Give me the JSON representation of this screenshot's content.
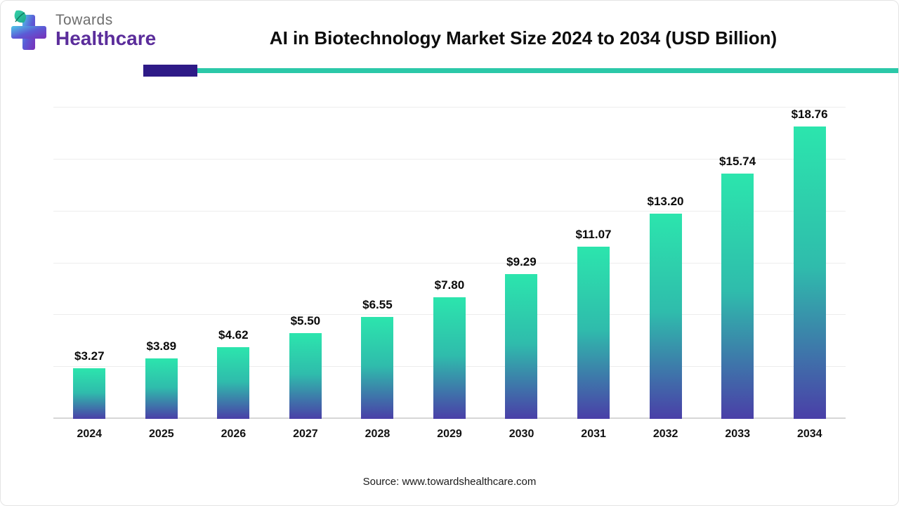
{
  "header": {
    "logo": {
      "line1": "Towards",
      "line2": "Healthcare"
    },
    "title": "AI in Biotechnology Market Size 2024 to 2034 (USD Billion)"
  },
  "chart_data": {
    "type": "bar",
    "title": "AI in Biotechnology Market Size 2024 to 2034 (USD Billion)",
    "categories": [
      "2024",
      "2025",
      "2026",
      "2027",
      "2028",
      "2029",
      "2030",
      "2031",
      "2032",
      "2033",
      "2034"
    ],
    "values": [
      3.27,
      3.89,
      4.62,
      5.5,
      6.55,
      7.8,
      9.29,
      11.07,
      13.2,
      15.74,
      18.76
    ],
    "value_labels": [
      "$3.27",
      "$3.89",
      "$4.62",
      "$5.50",
      "$6.55",
      "$7.80",
      "$9.29",
      "$11.07",
      "$13.20",
      "$15.74",
      "$18.76"
    ],
    "unit": "USD Billion",
    "xlabel": "",
    "ylabel": "",
    "ylim": [
      0,
      20
    ],
    "gridline_count": 6,
    "grid": true,
    "legend": "none",
    "bar_gradient_top": "#2CE5AD",
    "bar_gradient_bottom": "#4A3FA8"
  },
  "footer": {
    "source": "Source: www.towardshealthcare.com"
  },
  "colors": {
    "accent_teal": "#2BC8A8",
    "accent_purple": "#2E1A87",
    "logo_purple": "#5B2D9B",
    "logo_gray": "#6E6E6E"
  }
}
